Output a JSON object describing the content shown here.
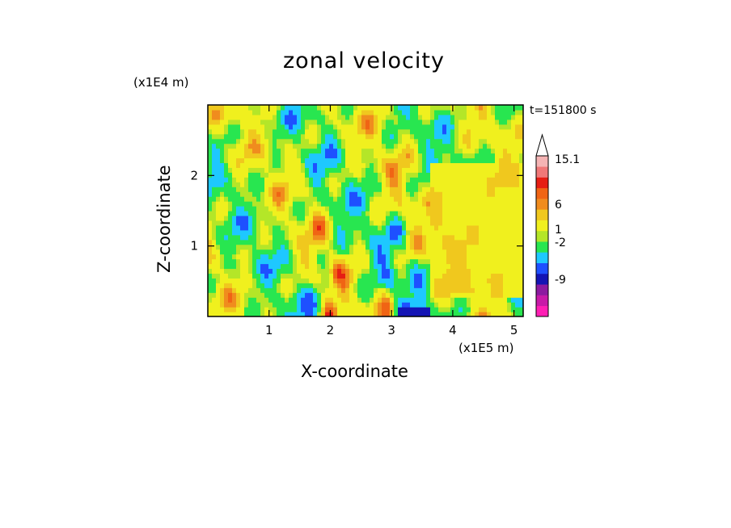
{
  "chart_data": {
    "type": "heatmap",
    "title": "zonal velocity",
    "xlabel": "X-coordinate",
    "ylabel": "Z-coordinate",
    "x_unit": "(x1E5 m)",
    "y_unit": "(x1E4 m)",
    "time_label": "t=151800 s",
    "xlim": [
      0,
      5.15
    ],
    "ylim": [
      0,
      3.0
    ],
    "x_ticks": [
      1,
      2,
      3,
      4,
      5
    ],
    "y_ticks": [
      1,
      2
    ],
    "colorbar": {
      "tick_labels": [
        "15.1",
        "6",
        "1",
        "-2",
        "-9"
      ],
      "colors": [
        "#ff1fb4",
        "#c81aa8",
        "#8c1aa0",
        "#1414b4",
        "#1e50ff",
        "#1ec8ff",
        "#28e650",
        "#b4e628",
        "#f0f01e",
        "#f0c81e",
        "#f08c1e",
        "#f06414",
        "#e61e14",
        "#f07878",
        "#f5b4b4"
      ]
    }
  }
}
